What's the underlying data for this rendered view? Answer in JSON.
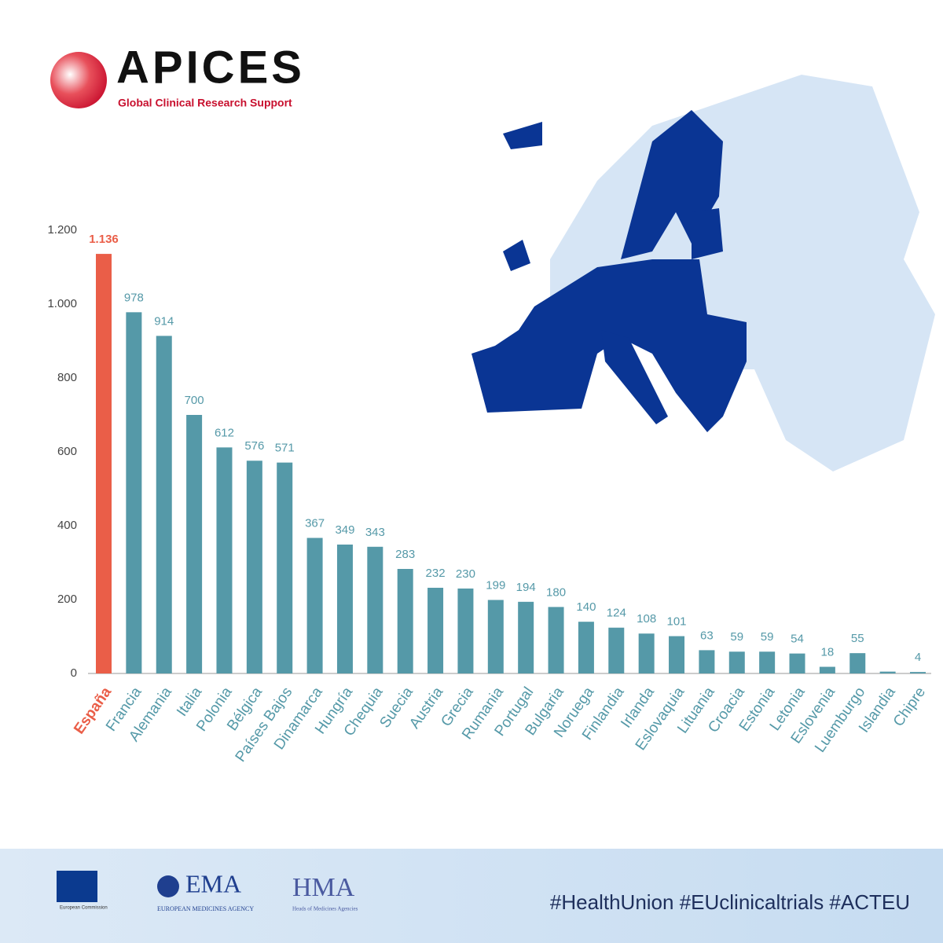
{
  "header": {
    "brand": "APICES",
    "tagline": "Global Clinical Research Support"
  },
  "chart_data": {
    "type": "bar",
    "categories": [
      "España",
      "Francia",
      "Alemania",
      "Italia",
      "Polonia",
      "Bélgica",
      "Países Bajos",
      "Dinamarca",
      "Hungría",
      "Chequia",
      "Suecia",
      "Austria",
      "Grecia",
      "Rumania",
      "Portugal",
      "Bulgaria",
      "Noruega",
      "Finlandia",
      "Irlanda",
      "Eslovaquia",
      "Lituania",
      "Croacia",
      "Estonia",
      "Letonia",
      "Eslovenia",
      "Luemburgo",
      "Islandia",
      "Chipre"
    ],
    "values": [
      1136,
      978,
      914,
      700,
      612,
      576,
      571,
      367,
      349,
      343,
      283,
      232,
      230,
      199,
      194,
      180,
      140,
      124,
      108,
      101,
      63,
      59,
      59,
      54,
      18,
      55,
      5,
      4
    ],
    "value_labels": [
      "1.136",
      "978",
      "914",
      "700",
      "612",
      "576",
      "571",
      "367",
      "349",
      "343",
      "283",
      "232",
      "230",
      "199",
      "194",
      "180",
      "140",
      "124",
      "108",
      "101",
      "63",
      "59",
      "59",
      "54",
      "18",
      "55",
      null,
      "4"
    ],
    "colors": [
      "#ea5e48",
      "#5599a8",
      "#5599a8",
      "#5599a8",
      "#5599a8",
      "#5599a8",
      "#5599a8",
      "#5599a8",
      "#5599a8",
      "#5599a8",
      "#5599a8",
      "#5599a8",
      "#5599a8",
      "#5599a8",
      "#5599a8",
      "#5599a8",
      "#5599a8",
      "#5599a8",
      "#5599a8",
      "#5599a8",
      "#5599a8",
      "#5599a8",
      "#5599a8",
      "#5599a8",
      "#5599a8",
      "#5599a8",
      "#5599a8",
      "#5599a8"
    ],
    "ylim": [
      0,
      1200
    ],
    "yticks": [
      0,
      200,
      400,
      600,
      800,
      {
        "value": 1000,
        "label": "1.000"
      },
      {
        "value": 1200,
        "label": "1.200"
      }
    ],
    "grid": false
  },
  "footer": {
    "ec": "European Commission",
    "ema": "EMA",
    "ema_full": "EUROPEAN MEDICINES AGENCY",
    "hma": "HMA",
    "hma_full": "Heads of Medicines Agencies",
    "hashtags": "#HealthUnion #EUclinicaltrials #ACTEU"
  }
}
